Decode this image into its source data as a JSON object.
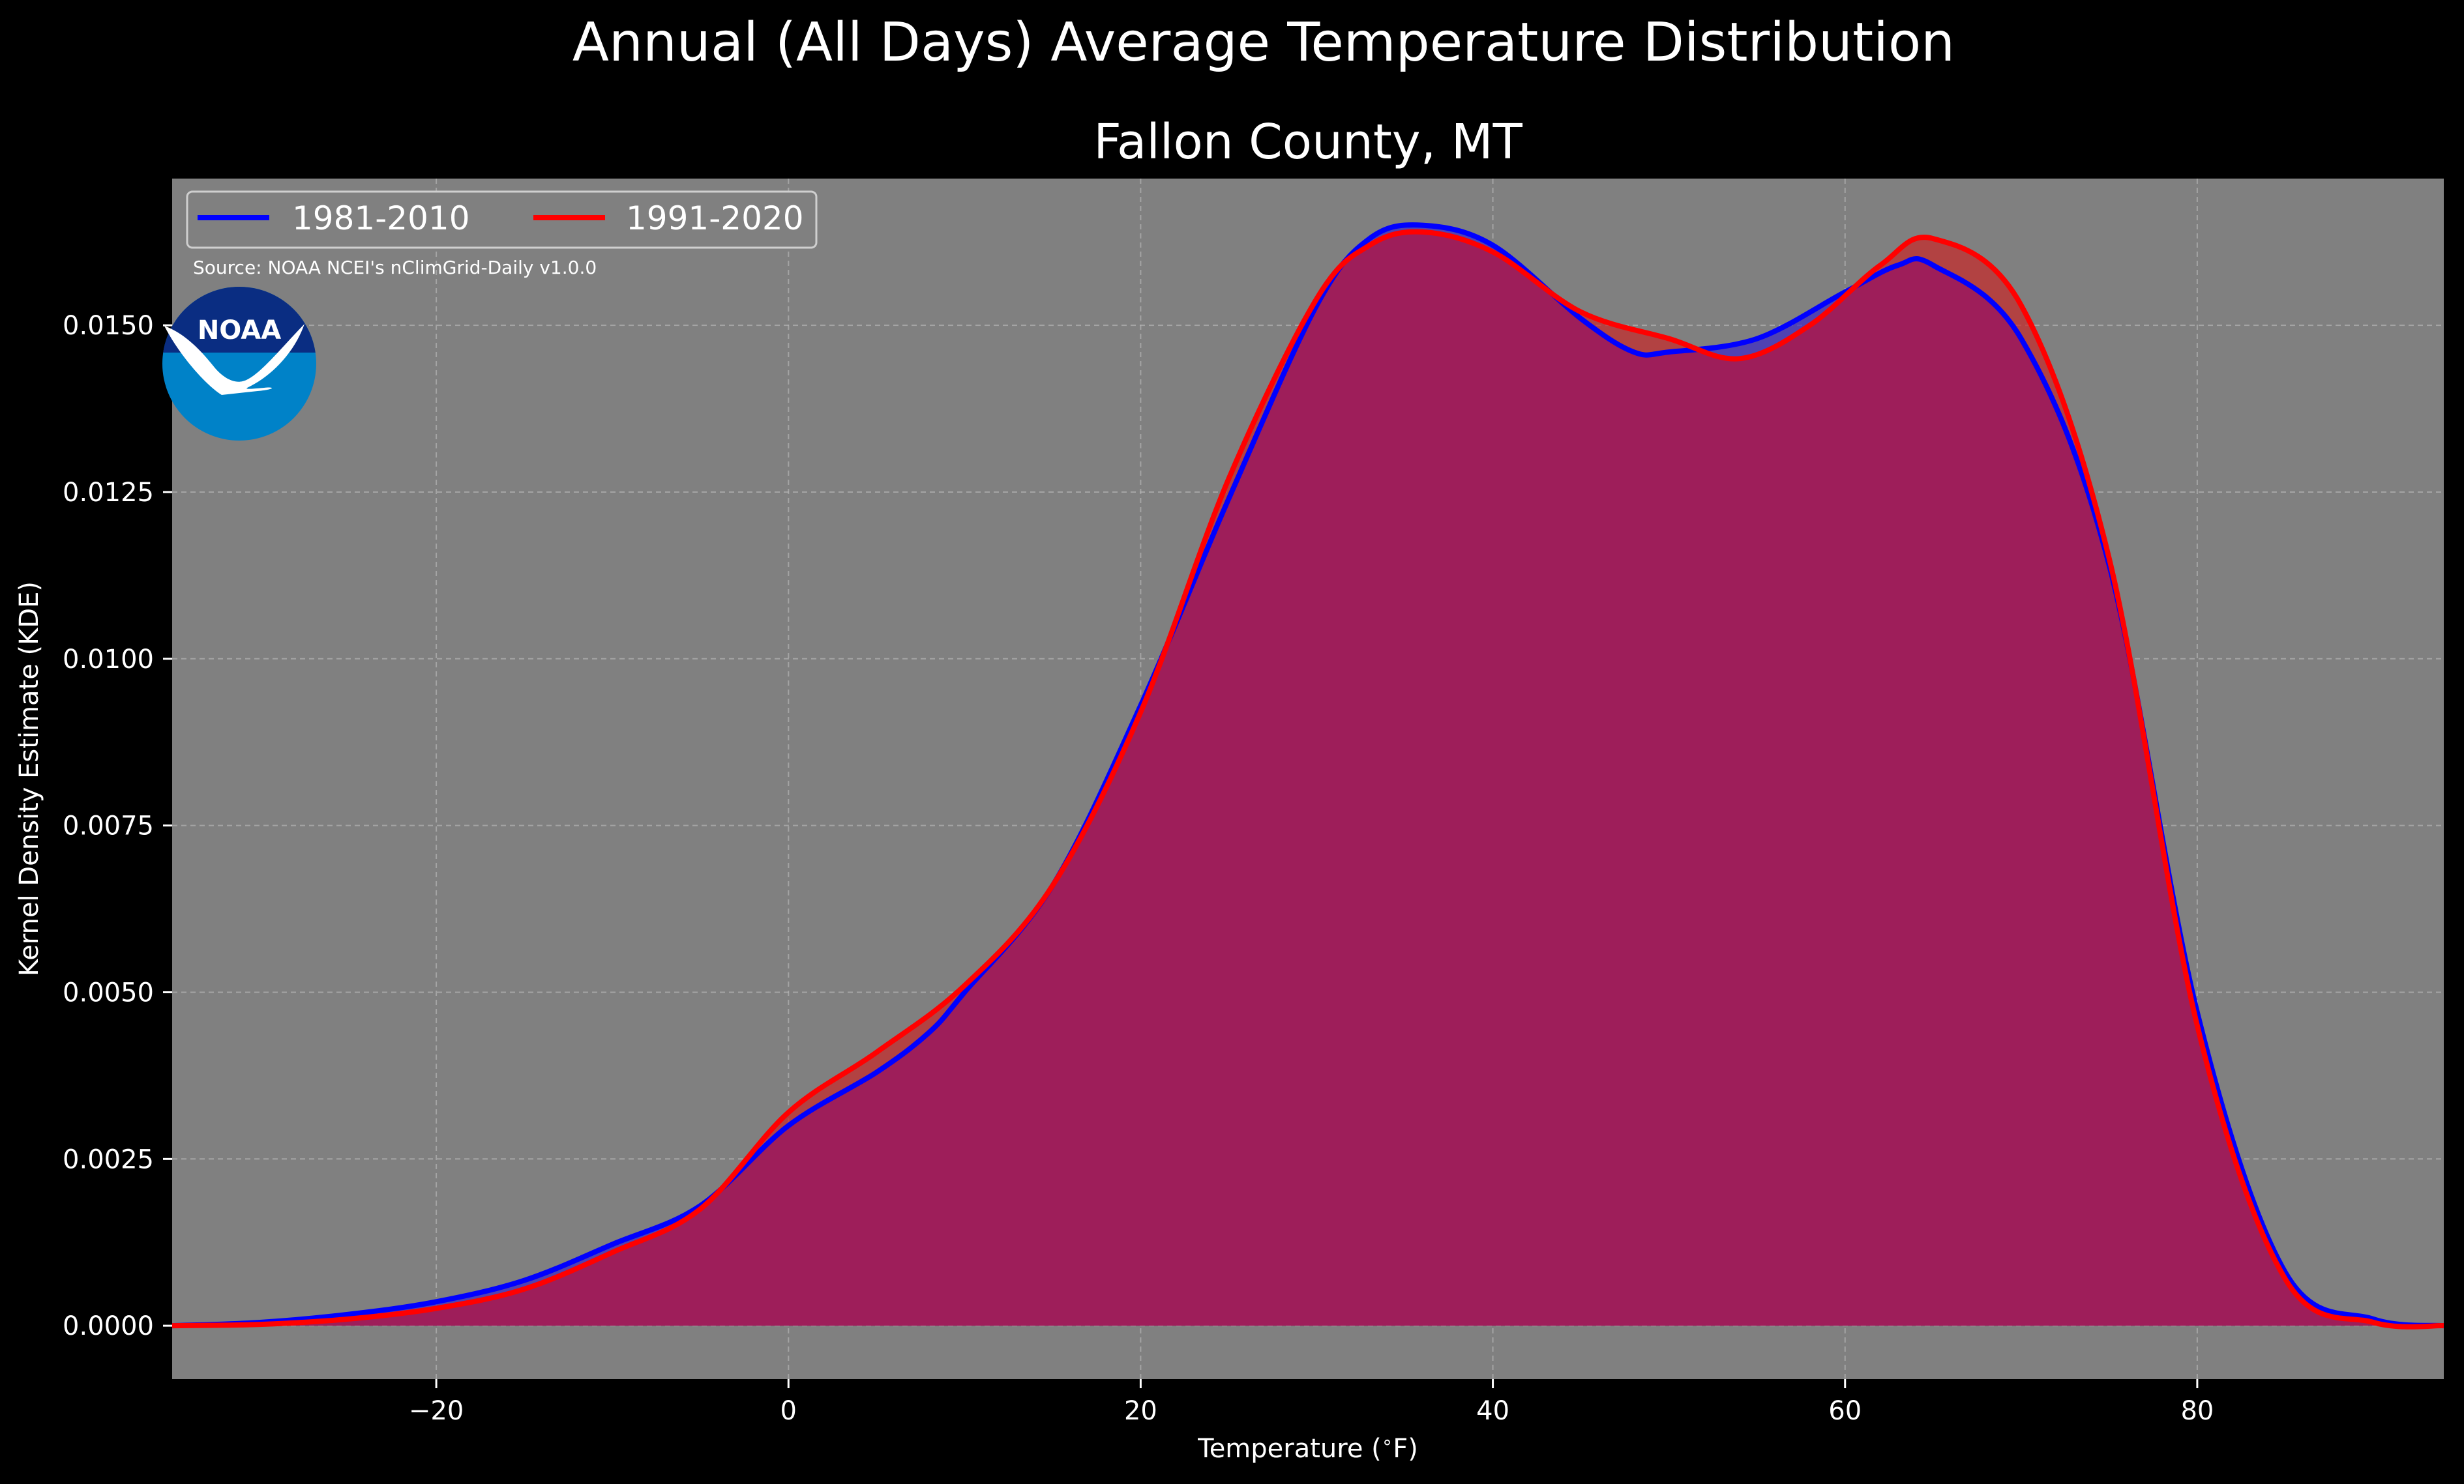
{
  "figure": {
    "background": "#000000",
    "plot_background": "#808080",
    "source": "Source: NOAA NCEI's nClimGrid-Daily v1.0.0",
    "logo_text": "NOAA",
    "logo_colors": {
      "top": "#0a2d82",
      "bottom": "#0082c8",
      "bird": "#ffffff"
    }
  },
  "chart_data": {
    "type": "area",
    "title": "Annual (All Days) Average Temperature Distribution",
    "subtitle": "Fallon County, MT",
    "xlabel": "Temperature ($^\\circ$F)",
    "ylabel": "Kernel Density Estimate (KDE)",
    "xlim": [
      -35,
      94
    ],
    "ylim": [
      -0.0008,
      0.0172
    ],
    "xticks": [
      -20,
      0,
      20,
      40,
      60,
      80
    ],
    "xtick_labels": [
      "−20",
      "0",
      "20",
      "40",
      "60",
      "80"
    ],
    "yticks": [
      0,
      0.0025,
      0.005,
      0.0075,
      0.01,
      0.0125,
      0.015
    ],
    "ytick_labels": [
      "0.0000",
      "0.0025",
      "0.0050",
      "0.0075",
      "0.0100",
      "0.0125",
      "0.0150"
    ],
    "grid": true,
    "legend_position": "top-left",
    "series": [
      {
        "name": "1981-2010",
        "color": "#0000ff",
        "fill": "#3c28c8",
        "points": [
          [
            -35,
            0
          ],
          [
            -30,
            5e-05
          ],
          [
            -25,
            0.00017
          ],
          [
            -20,
            0.00036
          ],
          [
            -15,
            0.00068
          ],
          [
            -10,
            0.00122
          ],
          [
            -5,
            0.0018
          ],
          [
            0,
            0.003
          ],
          [
            5,
            0.0038
          ],
          [
            8,
            0.0044
          ],
          [
            10,
            0.005
          ],
          [
            15,
            0.0066
          ],
          [
            20,
            0.0093
          ],
          [
            25,
            0.0124
          ],
          [
            30,
            0.0153
          ],
          [
            33,
            0.0163
          ],
          [
            36,
            0.0165
          ],
          [
            40,
            0.0162
          ],
          [
            45,
            0.0151
          ],
          [
            48,
            0.0146
          ],
          [
            50,
            0.0146
          ],
          [
            55,
            0.0148
          ],
          [
            60,
            0.0155
          ],
          [
            63,
            0.0159
          ],
          [
            65,
            0.0159
          ],
          [
            70,
            0.0148
          ],
          [
            75,
            0.0114
          ],
          [
            80,
            0.0047
          ],
          [
            85,
            0.0008
          ],
          [
            90,
            0.0001
          ],
          [
            94,
            0
          ]
        ]
      },
      {
        "name": "1991-2020",
        "color": "#ff0000",
        "fill": "#c82828",
        "points": [
          [
            -35,
            0
          ],
          [
            -30,
            2e-05
          ],
          [
            -25,
            0.0001
          ],
          [
            -20,
            0.00026
          ],
          [
            -15,
            0.00055
          ],
          [
            -10,
            0.0011
          ],
          [
            -5,
            0.00175
          ],
          [
            0,
            0.0032
          ],
          [
            5,
            0.0041
          ],
          [
            10,
            0.0051
          ],
          [
            15,
            0.0066
          ],
          [
            20,
            0.0092
          ],
          [
            25,
            0.0127
          ],
          [
            30,
            0.0154
          ],
          [
            33,
            0.0162
          ],
          [
            36,
            0.0164
          ],
          [
            40,
            0.0161
          ],
          [
            45,
            0.0152
          ],
          [
            50,
            0.0148
          ],
          [
            54,
            0.0145
          ],
          [
            58,
            0.015
          ],
          [
            62,
            0.0159
          ],
          [
            65,
            0.0163
          ],
          [
            70,
            0.0153
          ],
          [
            75,
            0.0115
          ],
          [
            80,
            0.0045
          ],
          [
            85,
            0.0007
          ],
          [
            90,
            5e-05
          ],
          [
            94,
            0
          ]
        ]
      }
    ],
    "overlap_fill": "#9e1e5a"
  }
}
